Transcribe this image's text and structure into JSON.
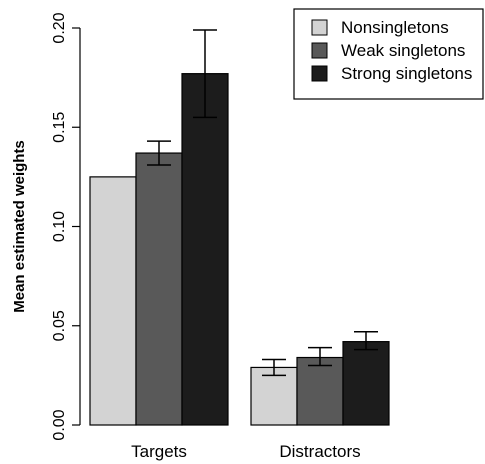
{
  "chart_data": {
    "type": "bar",
    "categories": [
      "Targets",
      "Distractors"
    ],
    "series": [
      {
        "name": "Nonsingletons",
        "color": "#d3d3d3",
        "values": [
          0.125,
          0.029
        ],
        "err_low": [
          null,
          0.025
        ],
        "err_high": [
          null,
          0.033
        ]
      },
      {
        "name": "Weak singletons",
        "color": "#595959",
        "values": [
          0.137,
          0.034
        ],
        "err_low": [
          0.131,
          0.03
        ],
        "err_high": [
          0.143,
          0.039
        ]
      },
      {
        "name": "Strong singletons",
        "color": "#1c1c1c",
        "values": [
          0.177,
          0.042
        ],
        "err_low": [
          0.155,
          0.038
        ],
        "err_high": [
          0.199,
          0.047
        ]
      }
    ],
    "ylabel": "Mean estimated weights",
    "xlabel": "",
    "ylim": [
      0,
      0.2
    ],
    "yticks": [
      "0.00",
      "0.05",
      "0.10",
      "0.15",
      "0.20"
    ],
    "legend_position": "top-right",
    "grid": false
  }
}
